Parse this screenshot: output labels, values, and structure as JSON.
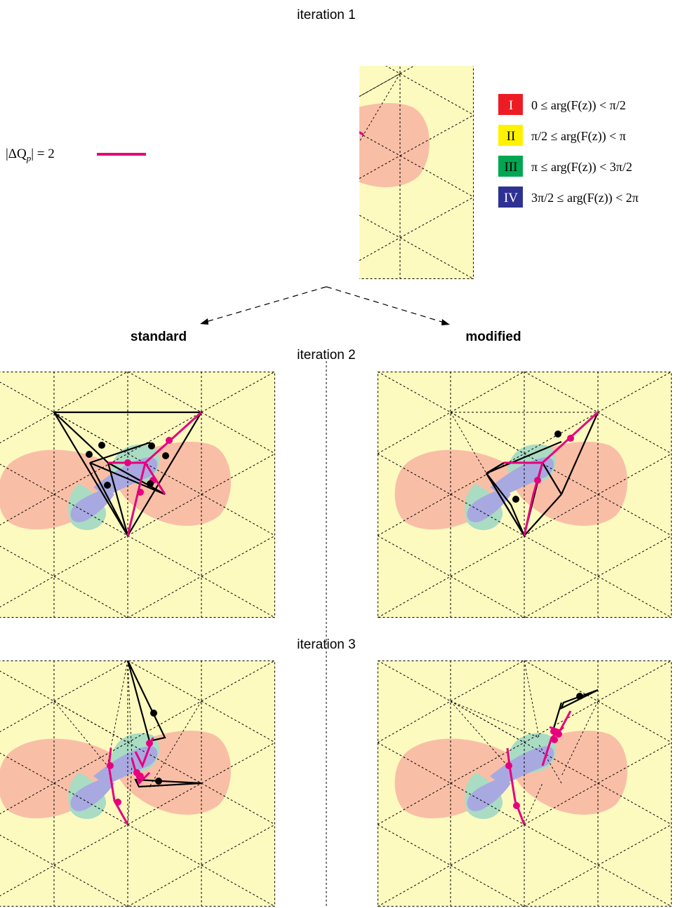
{
  "titles": {
    "iteration1": "iteration 1",
    "iteration2": "iteration 2",
    "iteration3": "iteration 3",
    "standard": "standard",
    "modified": "modified"
  },
  "key": {
    "label": "|ΔQ",
    "subscript": "p",
    "value": "| = 2",
    "color": "#e6007e"
  },
  "legend": [
    {
      "numeral": "I",
      "range": "0 ≤ arg(F(z)) < π/2",
      "color": "#ed1c24",
      "text_color": "#ffffff"
    },
    {
      "numeral": "II",
      "range": "π/2 ≤ arg(F(z)) < π",
      "color": "#fff200",
      "text_color": "#000000"
    },
    {
      "numeral": "III",
      "range": "π ≤ arg(F(z)) < 3π/2",
      "color": "#00a651",
      "text_color": "#000000"
    },
    {
      "numeral": "IV",
      "range": "3π/2 ≤ arg(F(z)) < 2π",
      "color": "#2e3192",
      "text_color": "#ffffff"
    }
  ],
  "colors": {
    "panel_bg": "#fdfac0",
    "region_I": "#f9bfa6",
    "region_III": "#a9dcc3",
    "region_IV": "#a8a9e0",
    "mesh": "#000000",
    "path": "#e6007e"
  }
}
